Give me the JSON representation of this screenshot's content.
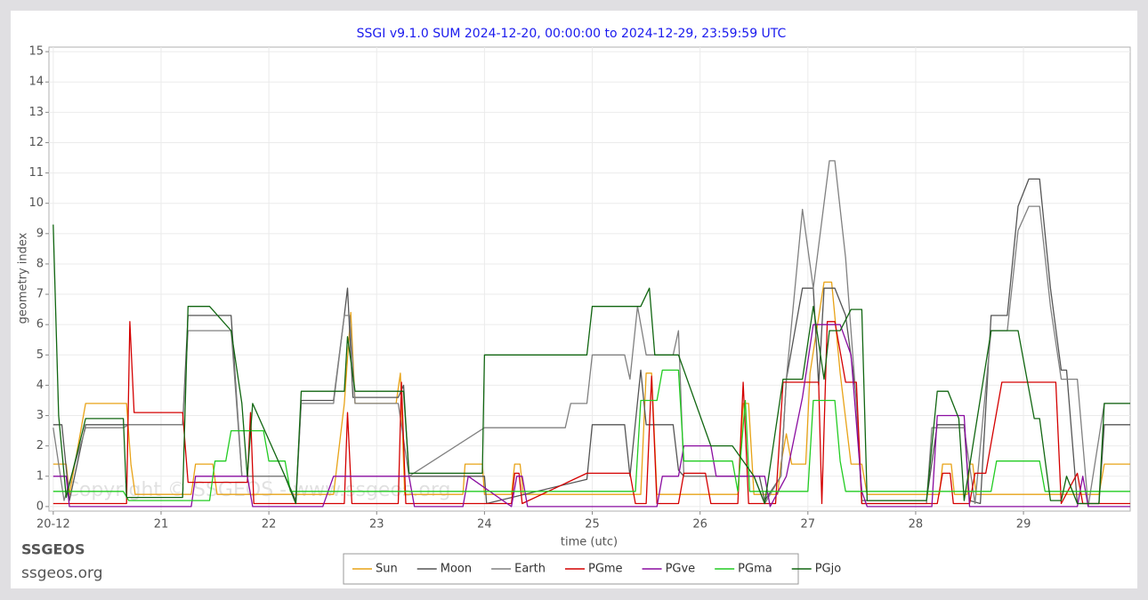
{
  "chart_data": {
    "type": "line",
    "title": "SSGI v9.1.0 SUM 2024-12-20, 00:00:00 to 2024-12-29, 23:59:59 UTC",
    "x_label": "time (utc)",
    "y_label": "geometry index",
    "watermark": "Copyright © SSGEOS - www.ssgeos.org",
    "xlim": [
      19.96,
      29.99
    ],
    "ylim": [
      -0.15,
      15.15
    ],
    "xticks": [
      {
        "value": 20,
        "label": "20-12"
      },
      21,
      22,
      23,
      24,
      25,
      26,
      27,
      28,
      29
    ],
    "yticks": [
      0,
      1,
      2,
      3,
      4,
      5,
      6,
      7,
      8,
      9,
      10,
      11,
      12,
      13,
      14,
      15
    ],
    "grid": true,
    "legend": "bottom",
    "series": [
      {
        "name": "Sun",
        "color": "#e8a317",
        "x": [
          20,
          20.12,
          20.15,
          20.3,
          20.68,
          20.72,
          20.76,
          21.28,
          21.32,
          21.48,
          21.52,
          22.6,
          22.7,
          22.76,
          22.8,
          23.18,
          23.22,
          23.26,
          23.8,
          23.82,
          23.98,
          24.0,
          24.25,
          24.28,
          24.33,
          24.36,
          25.45,
          25.5,
          25.55,
          25.6,
          26.35,
          26.4,
          26.45,
          26.5,
          26.72,
          26.75,
          26.8,
          26.85,
          26.98,
          27.02,
          27.15,
          27.22,
          27.3,
          27.4,
          27.5,
          27.55,
          28.22,
          28.25,
          28.33,
          28.36,
          28.48,
          28.5,
          28.53,
          28.56,
          29.7,
          29.75,
          29.99
        ],
        "values": [
          1.4,
          1.4,
          0.4,
          3.4,
          3.4,
          1.4,
          0.4,
          0.4,
          1.4,
          1.4,
          0.4,
          0.4,
          3.4,
          6.4,
          3.4,
          3.4,
          4.4,
          0.4,
          0.4,
          1.4,
          1.4,
          0.4,
          0.4,
          1.4,
          1.4,
          0.4,
          0.4,
          4.4,
          4.4,
          0.4,
          0.4,
          3.4,
          3.4,
          0.4,
          0.4,
          1.4,
          2.4,
          1.4,
          1.4,
          4.4,
          7.4,
          7.4,
          4.4,
          1.4,
          1.4,
          0.4,
          0.4,
          1.4,
          1.4,
          0.4,
          0.4,
          1.4,
          1.4,
          0.4,
          0.4,
          1.4,
          1.4
        ]
      },
      {
        "name": "Moon",
        "color": "#555555",
        "x": [
          20,
          20.08,
          20.15,
          20.3,
          20.66,
          20.7,
          21.2,
          21.25,
          21.65,
          21.7,
          21.75,
          22.15,
          22.25,
          22.3,
          22.6,
          22.7,
          22.73,
          22.78,
          23.2,
          23.25,
          23.3,
          24.0,
          24.02,
          24.95,
          25.0,
          25.3,
          25.35,
          25.45,
          25.5,
          25.75,
          25.8,
          25.85,
          26.1,
          26.15,
          26.55,
          26.6,
          26.75,
          26.8,
          26.95,
          27.05,
          27.1,
          27.15,
          27.25,
          27.35,
          27.45,
          27.5,
          27.55,
          28.1,
          28.2,
          28.45,
          28.5,
          28.6,
          28.7,
          28.85,
          28.95,
          29.05,
          29.15,
          29.25,
          29.35,
          29.4,
          29.5,
          29.6,
          29.7,
          29.75,
          29.99
        ],
        "values": [
          2.7,
          2.7,
          0.2,
          2.7,
          2.7,
          2.7,
          2.7,
          6.3,
          6.3,
          3.6,
          1.0,
          1.0,
          0.2,
          3.5,
          3.5,
          6.3,
          7.2,
          3.6,
          3.6,
          4.0,
          1.0,
          1.0,
          0.1,
          0.9,
          2.7,
          2.7,
          1.0,
          4.5,
          2.7,
          2.7,
          1.2,
          1.0,
          1.0,
          1.0,
          1.0,
          0.2,
          1.0,
          4.2,
          7.2,
          7.2,
          4.0,
          7.2,
          7.2,
          6.3,
          3.6,
          0.2,
          0.2,
          0.2,
          2.7,
          2.7,
          0.2,
          0.1,
          6.3,
          6.3,
          9.9,
          10.8,
          10.8,
          7.2,
          4.5,
          4.5,
          0.1,
          0.1,
          0.1,
          2.7,
          2.7
        ]
      },
      {
        "name": "Earth",
        "color": "#808080",
        "x": [
          20,
          20.1,
          20.3,
          20.65,
          20.7,
          21.2,
          21.25,
          21.65,
          21.7,
          21.75,
          22.15,
          22.25,
          22.3,
          22.6,
          22.7,
          22.75,
          22.8,
          23.2,
          23.3,
          24.0,
          24.75,
          24.8,
          24.95,
          25.0,
          25.3,
          25.35,
          25.42,
          25.5,
          25.75,
          25.8,
          25.85,
          26.5,
          26.6,
          26.75,
          26.8,
          26.95,
          27.05,
          27.2,
          27.25,
          27.35,
          27.45,
          27.5,
          28.1,
          28.15,
          28.45,
          28.55,
          28.7,
          28.85,
          28.95,
          29.05,
          29.15,
          29.25,
          29.35,
          29.5,
          29.6,
          29.75,
          29.99
        ],
        "values": [
          2.6,
          0.2,
          2.6,
          2.6,
          2.7,
          2.7,
          5.8,
          5.8,
          3.4,
          1.0,
          1.0,
          0.1,
          3.4,
          3.4,
          6.3,
          6.3,
          3.4,
          3.4,
          1.0,
          2.6,
          2.6,
          3.4,
          3.4,
          5.0,
          5.0,
          4.2,
          6.6,
          5.0,
          5.0,
          5.8,
          1.0,
          1.0,
          0.1,
          1.0,
          4.2,
          9.8,
          7.2,
          11.4,
          11.4,
          8.2,
          3.4,
          0.1,
          0.1,
          2.6,
          2.6,
          0.1,
          5.8,
          5.8,
          9.1,
          9.9,
          9.9,
          6.6,
          4.2,
          4.2,
          0.0,
          3.4,
          3.4
        ]
      },
      {
        "name": "PGme",
        "color": "#d40000",
        "x": [
          20,
          20.68,
          20.71,
          20.75,
          21.2,
          21.25,
          21.8,
          21.83,
          21.86,
          22.7,
          22.73,
          22.77,
          23.2,
          23.23,
          23.27,
          23.5,
          24.25,
          24.28,
          24.32,
          24.35,
          24.95,
          25.0,
          25.35,
          25.4,
          25.5,
          25.55,
          25.6,
          25.8,
          25.85,
          26.05,
          26.1,
          26.35,
          26.4,
          26.45,
          26.7,
          26.77,
          27.1,
          27.13,
          27.18,
          27.25,
          27.35,
          27.45,
          27.5,
          28.2,
          28.25,
          28.32,
          28.35,
          28.5,
          28.55,
          28.65,
          28.8,
          28.88,
          29.3,
          29.35,
          29.5,
          29.55,
          29.99
        ],
        "values": [
          0.1,
          0.1,
          6.1,
          3.1,
          3.1,
          0.8,
          0.8,
          3.1,
          0.1,
          0.1,
          3.1,
          0.1,
          0.1,
          4.1,
          0.1,
          0.1,
          0.1,
          1.1,
          1.1,
          0.1,
          1.1,
          1.1,
          1.1,
          0.1,
          0.1,
          4.3,
          0.1,
          0.1,
          1.1,
          1.1,
          0.1,
          0.1,
          4.1,
          0.1,
          0.1,
          4.1,
          4.1,
          0.1,
          6.1,
          6.1,
          4.1,
          4.1,
          0.1,
          0.1,
          1.1,
          1.1,
          0.1,
          0.1,
          1.1,
          1.1,
          4.1,
          4.1,
          4.1,
          0.1,
          1.1,
          0.1,
          0.1
        ]
      },
      {
        "name": "PGve",
        "color": "#8a0ca0",
        "x": [
          20,
          20.12,
          20.15,
          21.28,
          21.32,
          21.8,
          21.85,
          22.5,
          22.6,
          23.3,
          23.35,
          23.8,
          23.85,
          24.25,
          24.3,
          24.35,
          24.4,
          25.6,
          25.65,
          25.8,
          25.85,
          26.1,
          26.15,
          26.6,
          26.65,
          26.8,
          26.95,
          27.05,
          27.3,
          27.4,
          27.5,
          27.55,
          28.15,
          28.2,
          28.45,
          28.5,
          29.5,
          29.55,
          29.6,
          29.99
        ],
        "values": [
          1.0,
          1.0,
          0.0,
          0.0,
          1.0,
          1.0,
          0.0,
          0.0,
          1.0,
          1.0,
          0.0,
          0.0,
          1.0,
          0.0,
          1.0,
          1.0,
          0.0,
          0.0,
          1.0,
          1.0,
          2.0,
          2.0,
          1.0,
          1.0,
          0.0,
          1.0,
          3.6,
          6.0,
          6.0,
          5.0,
          0.5,
          0.0,
          0.0,
          3.0,
          3.0,
          0.0,
          0.0,
          1.0,
          0.0,
          0.0
        ]
      },
      {
        "name": "PGma",
        "color": "#22cc22",
        "x": [
          20,
          20.65,
          20.7,
          21.45,
          21.5,
          21.6,
          21.65,
          21.95,
          22.0,
          22.15,
          22.2,
          25.4,
          25.45,
          25.6,
          25.65,
          25.8,
          25.85,
          26.3,
          26.35,
          26.42,
          26.46,
          26.5,
          27.0,
          27.05,
          27.25,
          27.3,
          27.35,
          28.7,
          28.75,
          29.15,
          29.2,
          29.3,
          29.35,
          29.99
        ],
        "values": [
          0.5,
          0.5,
          0.2,
          0.2,
          1.5,
          1.5,
          2.5,
          2.5,
          1.5,
          1.5,
          0.5,
          0.5,
          3.5,
          3.5,
          4.5,
          4.5,
          1.5,
          1.5,
          0.5,
          3.5,
          0.5,
          0.5,
          0.5,
          3.5,
          3.5,
          1.5,
          0.5,
          0.5,
          1.5,
          1.5,
          0.5,
          0.5,
          0.5,
          0.5
        ]
      },
      {
        "name": "PGjo",
        "color": "#116611",
        "x": [
          20,
          20.05,
          20.12,
          20.3,
          20.65,
          20.68,
          21.2,
          21.25,
          21.45,
          21.65,
          21.75,
          21.8,
          21.85,
          22.15,
          22.25,
          22.3,
          22.7,
          22.73,
          22.8,
          23.25,
          23.3,
          23.98,
          24.0,
          24.95,
          25.0,
          25.45,
          25.53,
          25.58,
          25.8,
          26.1,
          26.3,
          26.5,
          26.6,
          26.77,
          26.95,
          27.05,
          27.15,
          27.2,
          27.3,
          27.4,
          27.5,
          27.55,
          28.1,
          28.2,
          28.3,
          28.4,
          28.45,
          28.7,
          28.95,
          29.1,
          29.15,
          29.25,
          29.35,
          29.4,
          29.5,
          29.7,
          29.75,
          29.99
        ],
        "values": [
          9.3,
          3.0,
          0.3,
          2.9,
          2.9,
          0.3,
          0.3,
          6.6,
          6.6,
          5.8,
          3.4,
          1.0,
          3.4,
          1.0,
          0.1,
          3.8,
          3.8,
          5.6,
          3.8,
          3.8,
          1.1,
          1.1,
          5.0,
          5.0,
          6.6,
          6.6,
          7.2,
          5.0,
          5.0,
          2.0,
          2.0,
          1.0,
          0.1,
          4.2,
          4.2,
          6.6,
          4.2,
          5.8,
          5.8,
          6.5,
          6.5,
          0.2,
          0.2,
          3.8,
          3.8,
          2.9,
          0.2,
          5.8,
          5.8,
          2.9,
          2.9,
          0.2,
          0.2,
          1.0,
          0.1,
          0.1,
          3.4,
          3.4
        ]
      }
    ]
  },
  "footer": {
    "brand": "SSGEOS",
    "url": "ssgeos.org"
  }
}
